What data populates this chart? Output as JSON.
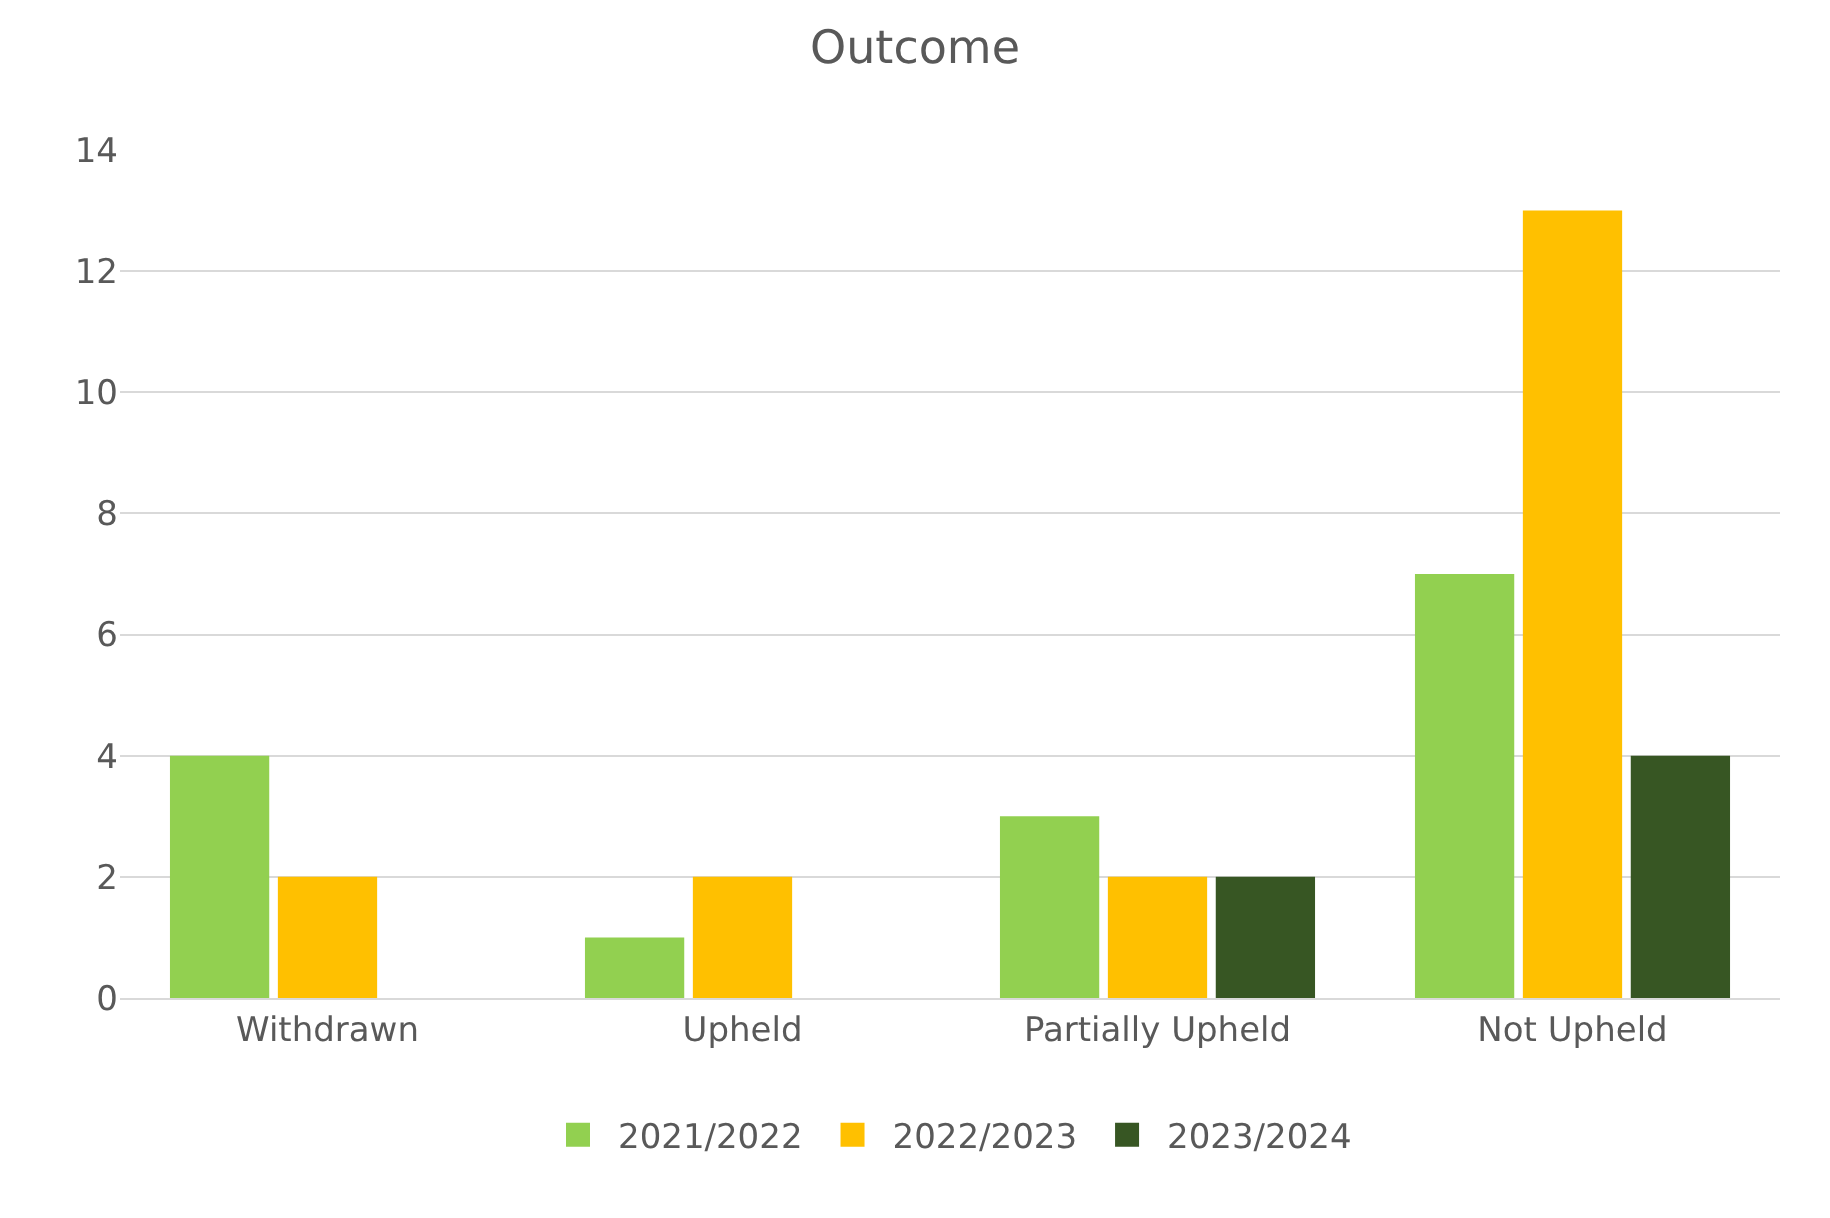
{
  "chart_data": {
    "type": "bar",
    "title": "Outcome",
    "categories": [
      "Withdrawn",
      "Upheld",
      "Partially Upheld",
      "Not Upheld"
    ],
    "series": [
      {
        "name": "2021/2022",
        "color": "#92d050",
        "values": [
          4,
          1,
          3,
          7
        ]
      },
      {
        "name": "2022/2023",
        "color": "#ffc000",
        "values": [
          2,
          2,
          2,
          13
        ]
      },
      {
        "name": "2023/2024",
        "color": "#375623",
        "values": [
          null,
          null,
          2,
          4
        ]
      }
    ],
    "ylim": [
      0,
      14
    ],
    "yticks": [
      0,
      2,
      4,
      6,
      8,
      10,
      12,
      14
    ],
    "grid": "y",
    "legend": "bottom"
  }
}
